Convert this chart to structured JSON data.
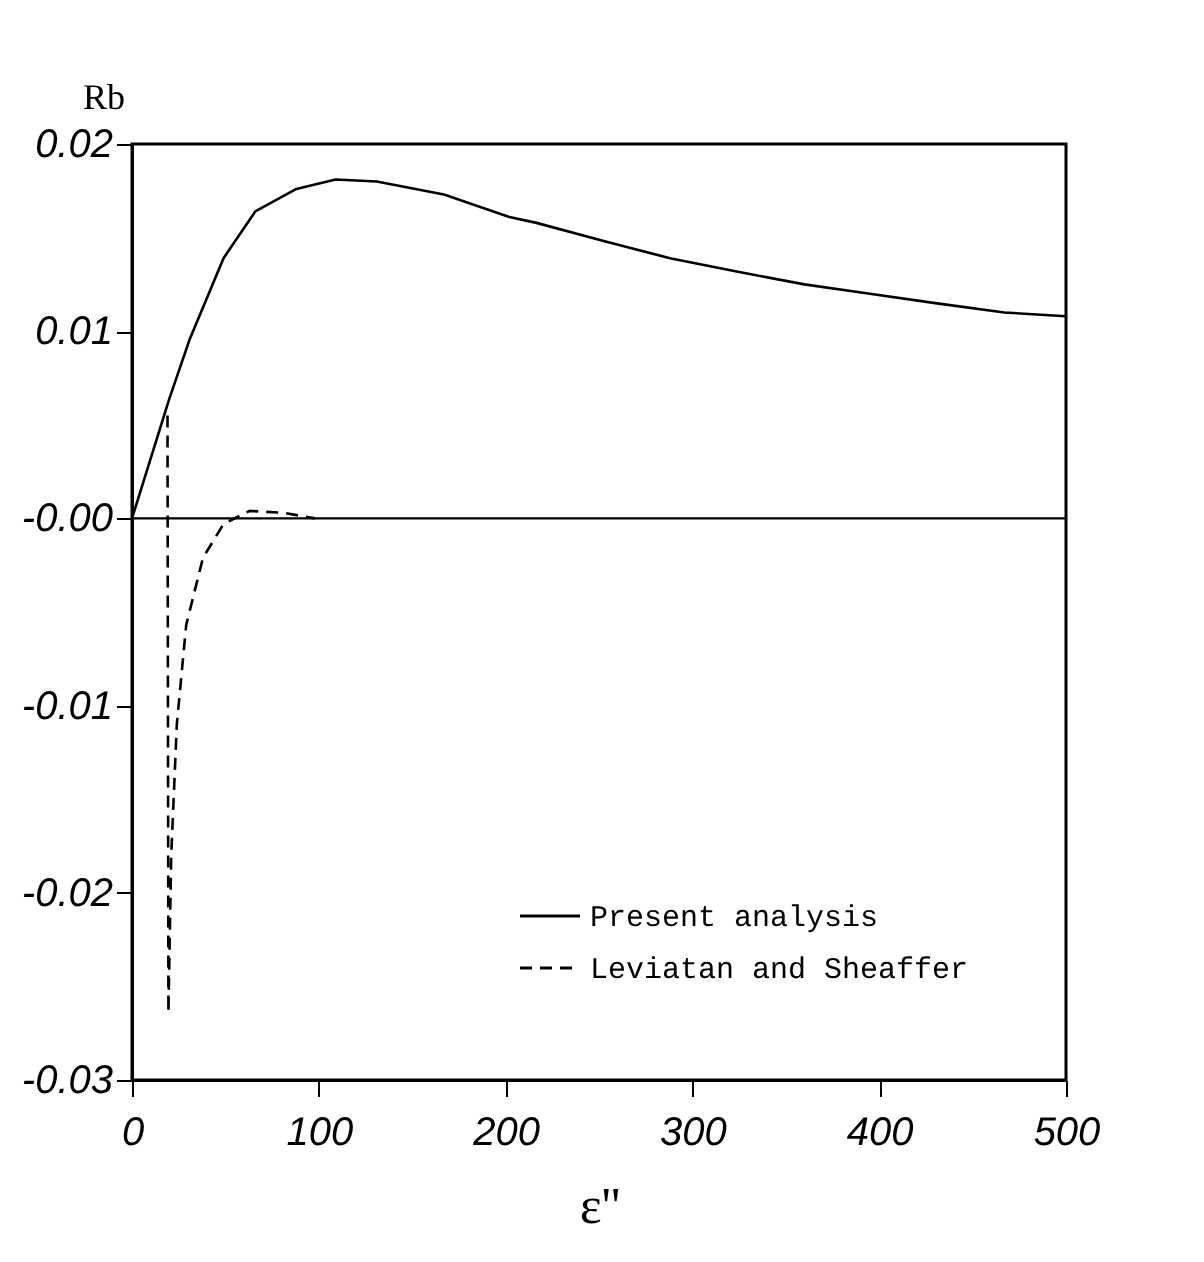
{
  "chart_data": {
    "type": "line",
    "xlabel": "ε''",
    "ylabel": "Rb",
    "xlim": [
      0,
      500
    ],
    "xticks": [
      0,
      100,
      200,
      300,
      400,
      500
    ],
    "ylim": [
      -0.03,
      0.02
    ],
    "yticks": [
      {
        "value": -0.03,
        "label": "-0.03"
      },
      {
        "value": -0.02,
        "label": "-0.02"
      },
      {
        "value": -0.01,
        "label": "-0.01"
      },
      {
        "value": 0,
        "label": "-0.00"
      },
      {
        "value": 0.01,
        "label": "0.01"
      },
      {
        "value": 0.02,
        "label": "0.02"
      }
    ],
    "grid": false,
    "legend": "bottom right",
    "ref_lines": [
      {
        "axis": "y",
        "value": 0,
        "color": "#000000",
        "line_style": "solid"
      }
    ],
    "series": [
      {
        "name": "Present analysis",
        "color": "#000000",
        "line_style": "solid",
        "x": [
          0,
          20,
          31,
          49,
          66,
          88,
          109,
          131,
          167,
          202,
          216,
          253,
          288,
          323,
          360,
          395,
          430,
          467,
          500
        ],
        "values": [
          0,
          0.0064,
          0.0096,
          0.0139,
          0.0164,
          0.0176,
          0.0181,
          0.018,
          0.0173,
          0.0161,
          0.0158,
          0.0148,
          0.0139,
          0.0132,
          0.0125,
          0.012,
          0.0115,
          0.011,
          0.0108
        ]
      },
      {
        "name": "Leviatan and Sheaffer",
        "color": "#000000",
        "line_style": "dashed",
        "x": [
          19,
          19.5,
          21,
          24,
          29,
          38,
          49,
          63,
          81,
          98
        ],
        "values": [
          0.0055,
          -0.0264,
          -0.018,
          -0.011,
          -0.0057,
          -0.0021,
          -0.0003,
          0.0004,
          0.0003,
          0
        ]
      }
    ]
  }
}
